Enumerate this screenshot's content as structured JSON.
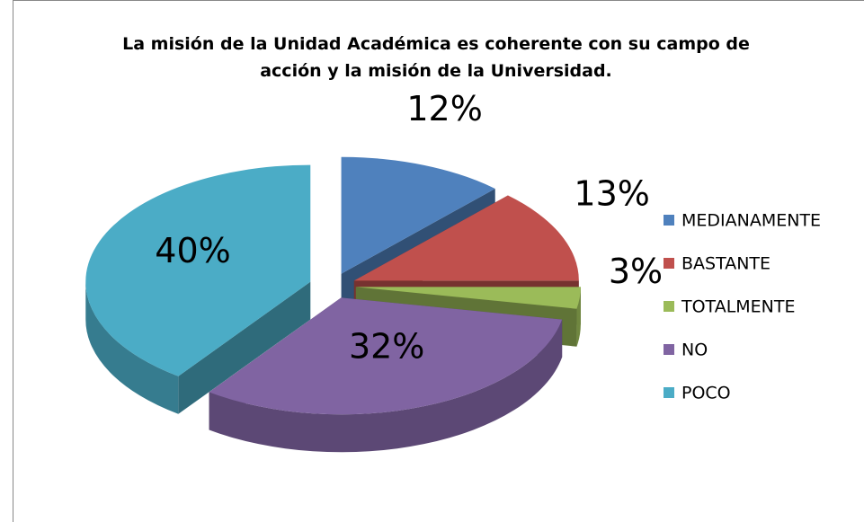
{
  "chart_data": {
    "type": "pie",
    "title": "La misión de la Unidad Académica es coherente con su campo de acción y la misión de la Universidad.",
    "categories": [
      "MEDIANAMENTE",
      "BASTANTE",
      "TOTALMENTE",
      "NO",
      "POCO"
    ],
    "values": [
      12,
      13,
      3,
      32,
      40
    ],
    "value_labels": [
      "12%",
      "13%",
      "3%",
      "32%",
      "40%"
    ],
    "colors": [
      "#4f81bd",
      "#c0504d",
      "#9bbb59",
      "#8064a2",
      "#4bacc6"
    ],
    "legend": "right"
  }
}
